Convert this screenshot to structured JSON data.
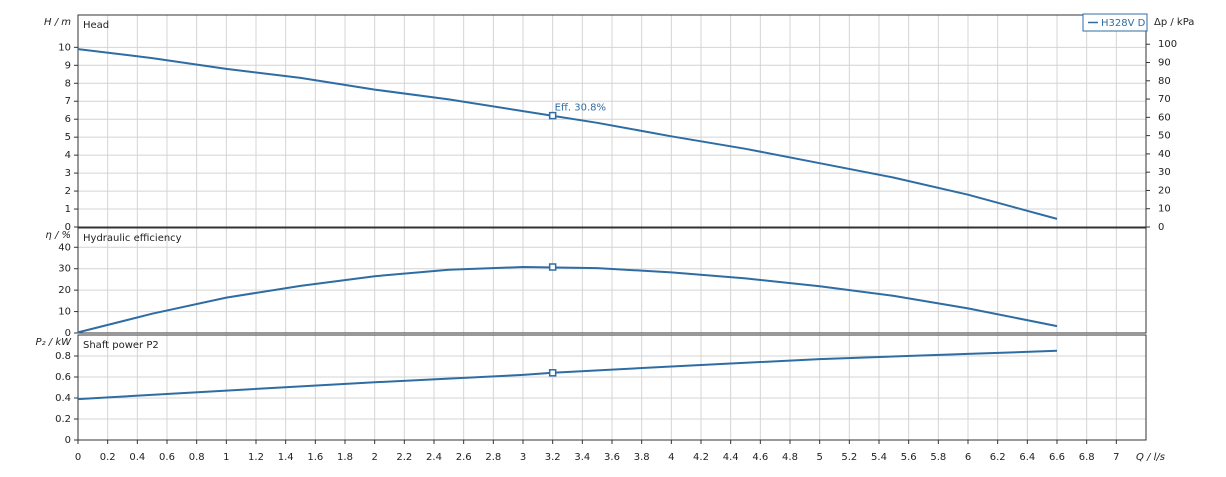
{
  "chart_data": [
    {
      "type": "line",
      "title": "Head",
      "ylabel": "H / m",
      "y2label": "Δp / kPa",
      "xlim": [
        0,
        7.2
      ],
      "ylim": [
        0,
        11.8
      ],
      "yticks": [
        0,
        1,
        2,
        3,
        4,
        5,
        6,
        7,
        8,
        9,
        10
      ],
      "y2lim": [
        0,
        116
      ],
      "y2ticks": [
        0,
        10,
        20,
        30,
        40,
        50,
        60,
        70,
        80,
        90,
        100
      ],
      "x": [
        0,
        0.5,
        1,
        1.5,
        2,
        2.5,
        3,
        3.5,
        4,
        4.5,
        5,
        5.5,
        6,
        6.6
      ],
      "series": [
        {
          "name": "H328V D",
          "color": "#2e6da4",
          "values": [
            9.9,
            9.4,
            8.8,
            8.3,
            7.65,
            7.1,
            6.45,
            5.8,
            5.05,
            4.35,
            3.55,
            2.75,
            1.8,
            0.45
          ]
        }
      ],
      "marker": {
        "x": 3.2,
        "y": 6.2
      },
      "annotation": "Eff.  30.8%",
      "legend": "upper right",
      "grid": true
    },
    {
      "type": "line",
      "title": "Hydraulic efficiency",
      "ylabel": "η / %",
      "xlim": [
        0,
        7.2
      ],
      "ylim": [
        0,
        49
      ],
      "yticks": [
        0,
        10,
        20,
        30,
        40
      ],
      "x": [
        0,
        0.5,
        1,
        1.5,
        2,
        2.5,
        3,
        3.5,
        4,
        4.5,
        5,
        5.5,
        6,
        6.6
      ],
      "series": [
        {
          "color": "#2e6da4",
          "values": [
            0.3,
            9,
            16.5,
            22,
            26.5,
            29.5,
            30.8,
            30.3,
            28.3,
            25.5,
            21.8,
            17.3,
            11.5,
            3.2
          ]
        }
      ],
      "marker": {
        "x": 3.2,
        "y": 30.8
      },
      "grid": true
    },
    {
      "type": "line",
      "title": "Shaft power P2",
      "ylabel": "P₂ / kW",
      "xlabel": "Q / l/s",
      "xlim": [
        0,
        7.2
      ],
      "ylim": [
        0,
        1
      ],
      "yticks": [
        0,
        0.2,
        0.4,
        0.6,
        0.8
      ],
      "xticks": [
        0,
        0.2,
        0.4,
        0.6,
        0.8,
        1,
        1.2,
        1.4,
        1.6,
        1.8,
        2,
        2.2,
        2.4,
        2.6,
        2.8,
        3,
        3.2,
        3.4,
        3.6,
        3.8,
        4,
        4.2,
        4.4,
        4.6,
        4.8,
        5,
        5.2,
        5.4,
        5.6,
        5.8,
        6,
        6.2,
        6.4,
        6.6,
        6.8,
        7
      ],
      "x": [
        0,
        1,
        2,
        3,
        3.2,
        4,
        5,
        6,
        6.6
      ],
      "series": [
        {
          "color": "#2e6da4",
          "values": [
            0.39,
            0.47,
            0.55,
            0.62,
            0.64,
            0.7,
            0.77,
            0.82,
            0.85
          ]
        }
      ],
      "marker": {
        "x": 3.2,
        "y": 0.64
      },
      "grid": true
    }
  ]
}
